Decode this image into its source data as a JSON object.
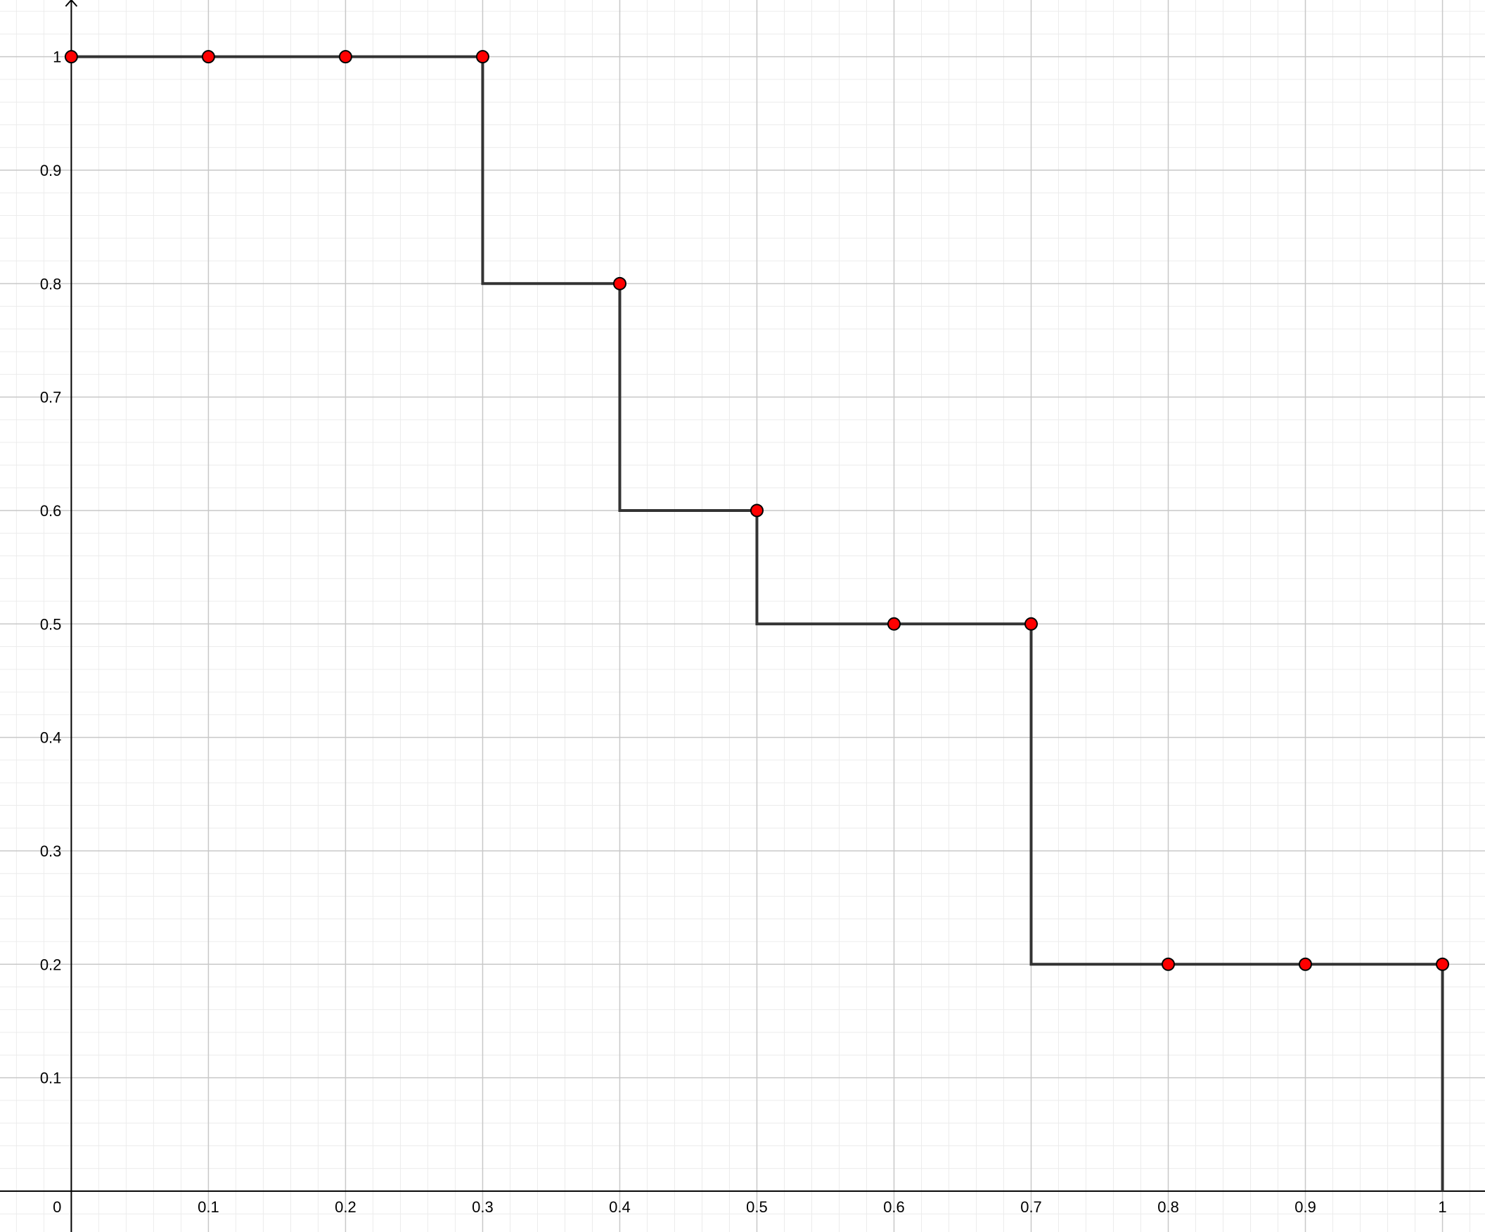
{
  "chart_data": {
    "type": "line",
    "title": "",
    "xlabel": "",
    "ylabel": "",
    "xlim": [
      -0.052,
      1.031
    ],
    "ylim": [
      -0.036,
      1.05
    ],
    "grid": true,
    "x_ticks": [
      {
        "value": 0,
        "label": "0"
      },
      {
        "value": 0.1,
        "label": "0.1"
      },
      {
        "value": 0.2,
        "label": "0.2"
      },
      {
        "value": 0.3,
        "label": "0.3"
      },
      {
        "value": 0.4,
        "label": "0.4"
      },
      {
        "value": 0.5,
        "label": "0.5"
      },
      {
        "value": 0.6,
        "label": "0.6"
      },
      {
        "value": 0.7,
        "label": "0.7"
      },
      {
        "value": 0.8,
        "label": "0.8"
      },
      {
        "value": 0.9,
        "label": "0.9"
      },
      {
        "value": 1,
        "label": "1"
      }
    ],
    "y_ticks": [
      {
        "value": 0.1,
        "label": "0.1"
      },
      {
        "value": 0.2,
        "label": "0.2"
      },
      {
        "value": 0.3,
        "label": "0.3"
      },
      {
        "value": 0.4,
        "label": "0.4"
      },
      {
        "value": 0.5,
        "label": "0.5"
      },
      {
        "value": 0.6,
        "label": "0.6"
      },
      {
        "value": 0.7,
        "label": "0.7"
      },
      {
        "value": 0.8,
        "label": "0.8"
      },
      {
        "value": 0.9,
        "label": "0.9"
      },
      {
        "value": 1,
        "label": "1"
      }
    ],
    "step_line": [
      [
        0,
        1
      ],
      [
        0.3,
        1
      ],
      [
        0.3,
        0.8
      ],
      [
        0.4,
        0.8
      ],
      [
        0.4,
        0.6
      ],
      [
        0.5,
        0.6
      ],
      [
        0.5,
        0.5
      ],
      [
        0.7,
        0.5
      ],
      [
        0.7,
        0.2
      ],
      [
        1,
        0.2
      ],
      [
        1,
        0
      ]
    ],
    "points": [
      {
        "x": 0,
        "y": 1
      },
      {
        "x": 0.1,
        "y": 1
      },
      {
        "x": 0.2,
        "y": 1
      },
      {
        "x": 0.3,
        "y": 1
      },
      {
        "x": 0.4,
        "y": 0.8
      },
      {
        "x": 0.5,
        "y": 0.6
      },
      {
        "x": 0.6,
        "y": 0.5
      },
      {
        "x": 0.7,
        "y": 0.5
      },
      {
        "x": 0.8,
        "y": 0.2
      },
      {
        "x": 0.9,
        "y": 0.2
      },
      {
        "x": 1,
        "y": 0.2
      }
    ],
    "colors": {
      "line": "#333333",
      "point_fill": "#ff0000",
      "point_stroke": "#000000",
      "major_grid": "#c8c8c8",
      "minor_grid": "#ececec",
      "axis": "#000000"
    }
  }
}
